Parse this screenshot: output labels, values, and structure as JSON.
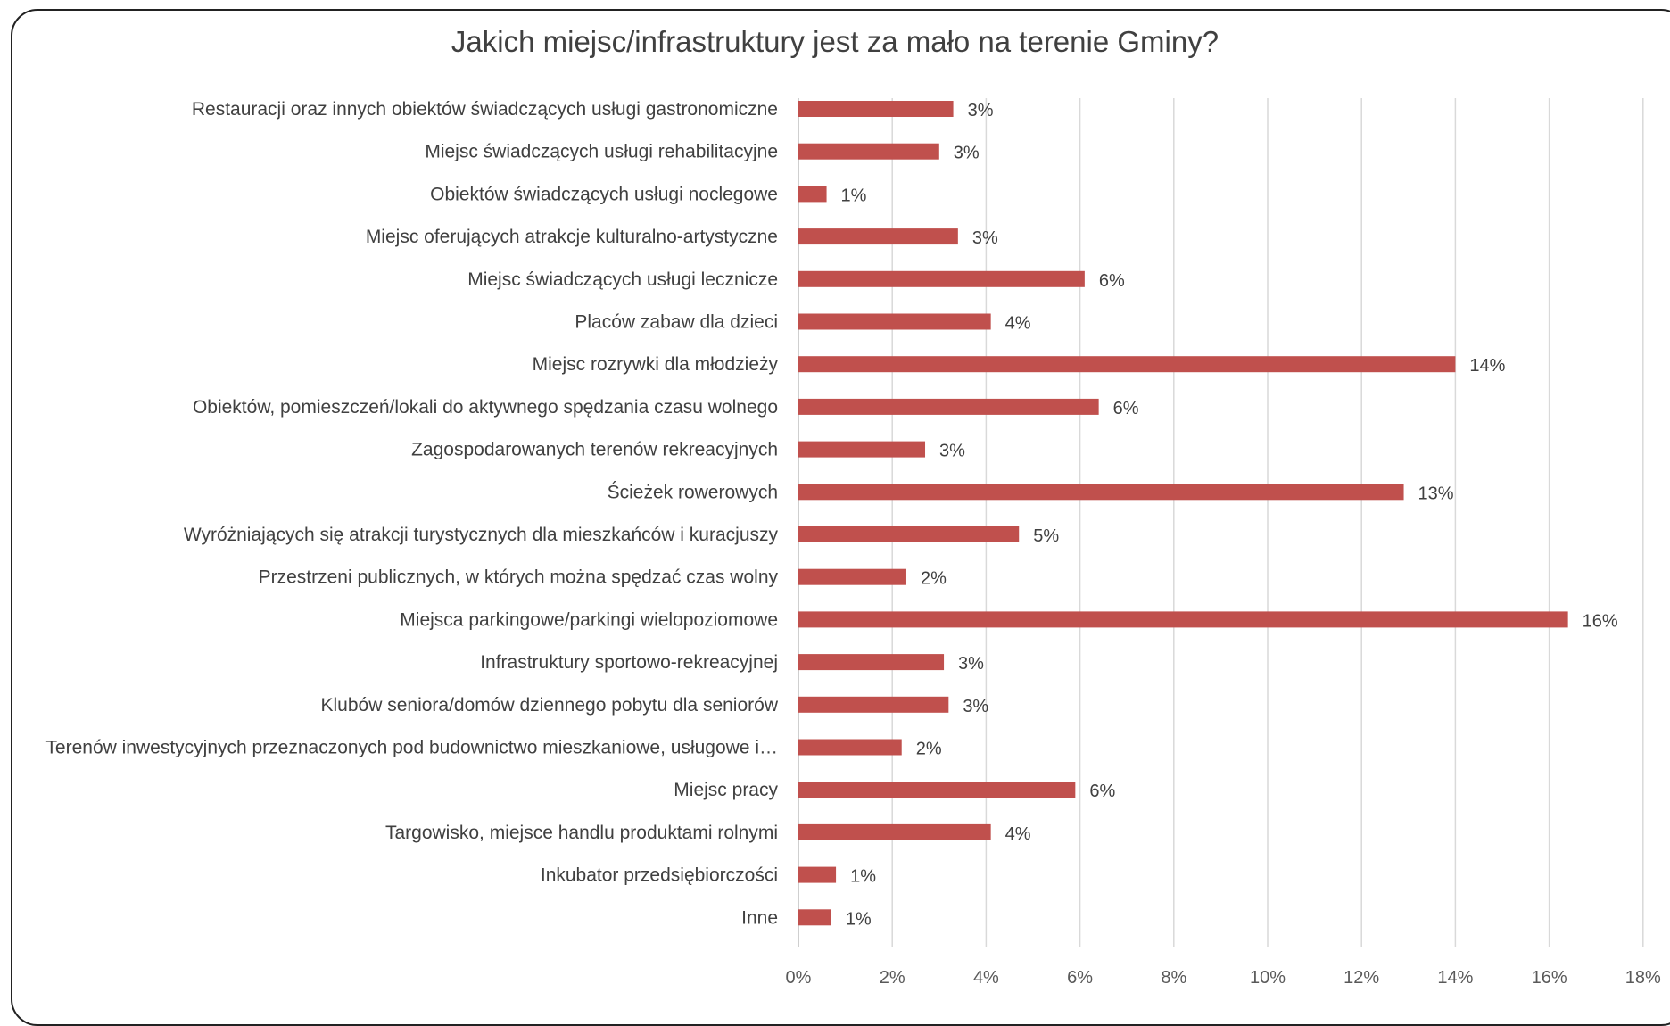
{
  "chart_data": {
    "type": "bar",
    "orientation": "horizontal",
    "title": "Jakich miejsc/infrastruktury jest za mało na terenie Gminy?",
    "categories": [
      "Restauracji oraz innych obiektów świadczących usługi gastronomiczne",
      "Miejsc świadczących usługi rehabilitacyjne",
      "Obiektów świadczących usługi noclegowe",
      "Miejsc oferujących atrakcje kulturalno-artystyczne",
      "Miejsc świadczących usługi lecznicze",
      "Placów zabaw dla dzieci",
      "Miejsc rozrywki dla młodzieży",
      "Obiektów, pomieszczeń/lokali do aktywnego spędzania czasu wolnego",
      "Zagospodarowanych terenów rekreacyjnych",
      "Ścieżek rowerowych",
      "Wyróżniających się atrakcji turystycznych dla mieszkańców i kuracjuszy",
      "Przestrzeni publicznych, w których można spędzać czas wolny",
      "Miejsca parkingowe/parkingi wielopoziomowe",
      "Infrastruktury sportowo-rekreacyjnej",
      "Klubów seniora/domów dziennego pobytu dla seniorów",
      "Terenów inwestycyjnych przeznaczonych pod budownictwo mieszkaniowe, usługowe i…",
      "Miejsc pracy",
      "Targowisko, miejsce handlu produktami rolnymi",
      "Inkubator przedsiębiorczości",
      "Inne"
    ],
    "values": [
      3.3,
      3.0,
      0.6,
      3.4,
      6.1,
      4.1,
      14.0,
      6.4,
      2.7,
      12.9,
      4.7,
      2.3,
      16.4,
      3.1,
      3.2,
      2.2,
      5.9,
      4.1,
      0.8,
      0.7
    ],
    "data_labels": [
      "3%",
      "3%",
      "1%",
      "3%",
      "6%",
      "4%",
      "14%",
      "6%",
      "3%",
      "13%",
      "5%",
      "2%",
      "16%",
      "3%",
      "3%",
      "2%",
      "6%",
      "4%",
      "1%",
      "1%"
    ],
    "xlim": [
      0,
      18
    ],
    "x_ticks": [
      "0%",
      "2%",
      "4%",
      "6%",
      "8%",
      "10%",
      "12%",
      "14%",
      "16%",
      "18%"
    ],
    "grid": "vertical",
    "colors": {
      "bar": "#c0504d",
      "grid": "#d9d9d9",
      "text": "#404040"
    }
  }
}
